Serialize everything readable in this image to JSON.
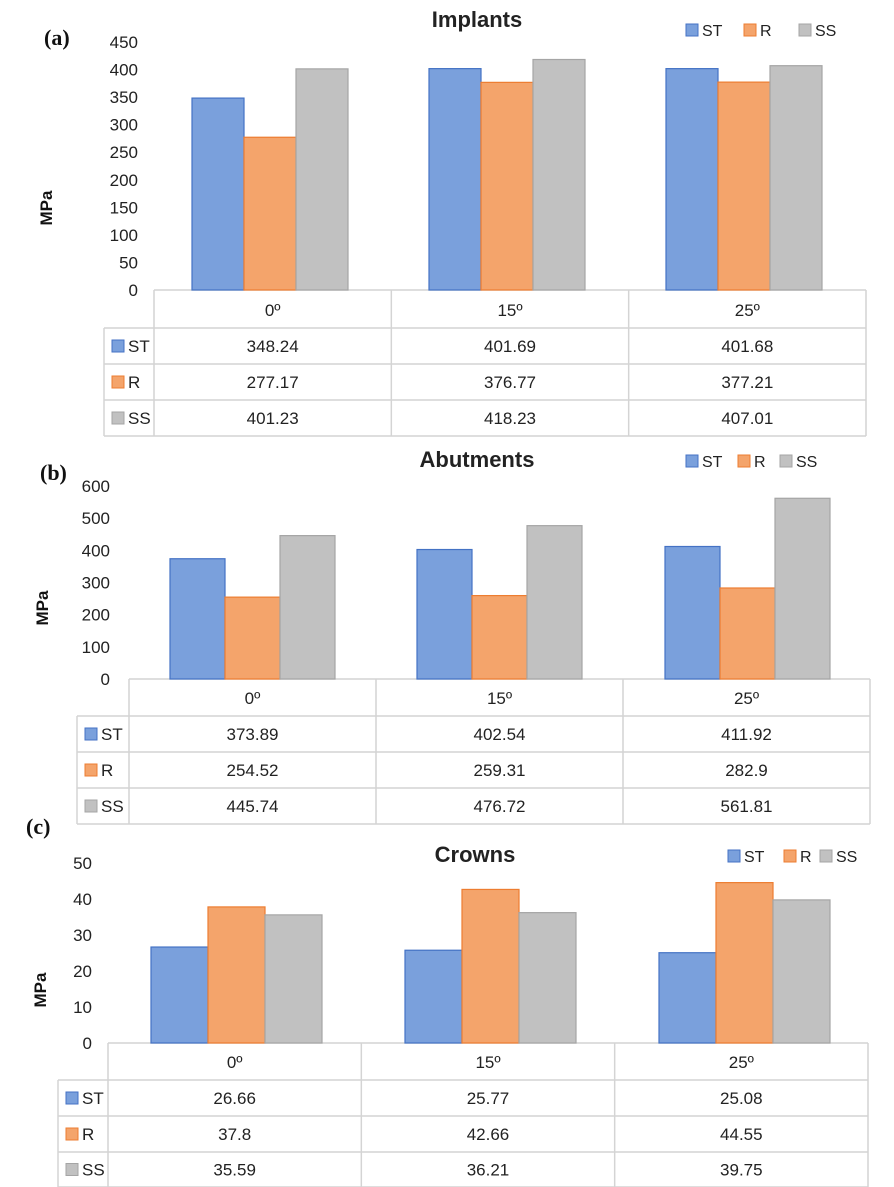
{
  "chart_data": [
    {
      "type": "bar",
      "panel_label": "(a)",
      "title": "Implants",
      "ylabel": "MPa",
      "ylim": [
        0,
        450
      ],
      "ytick_step": 50,
      "categories": [
        "0º",
        "15º",
        "25º"
      ],
      "series": [
        {
          "name": "ST",
          "color": "#7aa0dc",
          "values": [
            348.24,
            401.69,
            401.68
          ],
          "labels": [
            "348.24",
            "401.69",
            "401.68"
          ]
        },
        {
          "name": "R",
          "color": "#f4a46b",
          "values": [
            277.17,
            376.77,
            377.21
          ],
          "labels": [
            "277.17",
            "376.77",
            "377.21"
          ]
        },
        {
          "name": "SS",
          "color": "#c1c1c1",
          "values": [
            401.23,
            418.23,
            407.01
          ],
          "labels": [
            "401.23",
            "418.23",
            "407.01"
          ]
        }
      ],
      "legend": "top-right",
      "data_table": true
    },
    {
      "type": "bar",
      "panel_label": "(b)",
      "title": "Abutments",
      "ylabel": "MPa",
      "ylim": [
        0,
        600
      ],
      "ytick_step": 100,
      "categories": [
        "0º",
        "15º",
        "25º"
      ],
      "series": [
        {
          "name": "ST",
          "color": "#7aa0dc",
          "values": [
            373.89,
            402.54,
            411.92
          ],
          "labels": [
            "373.89",
            "402.54",
            "411.92"
          ]
        },
        {
          "name": "R",
          "color": "#f4a46b",
          "values": [
            254.52,
            259.31,
            282.9
          ],
          "labels": [
            "254.52",
            "259.31",
            "282.9"
          ]
        },
        {
          "name": "SS",
          "color": "#c1c1c1",
          "values": [
            445.74,
            476.72,
            561.81
          ],
          "labels": [
            "445.74",
            "476.72",
            "561.81"
          ]
        }
      ],
      "legend": "top-right",
      "data_table": true
    },
    {
      "type": "bar",
      "panel_label": "(c)",
      "title": "Crowns",
      "ylabel": "MPa",
      "ylim": [
        0,
        50
      ],
      "ytick_step": 10,
      "categories": [
        "0º",
        "15º",
        "25º"
      ],
      "series": [
        {
          "name": "ST",
          "color": "#7aa0dc",
          "values": [
            26.66,
            25.77,
            25.08
          ],
          "labels": [
            "26.66",
            "25.77",
            "25.08"
          ]
        },
        {
          "name": "R",
          "color": "#f4a46b",
          "values": [
            37.8,
            42.66,
            44.55
          ],
          "labels": [
            "37.8",
            "42.66",
            "44.55"
          ]
        },
        {
          "name": "SS",
          "color": "#c1c1c1",
          "values": [
            35.59,
            36.21,
            39.75
          ],
          "labels": [
            "35.59",
            "36.21",
            "39.75"
          ]
        }
      ],
      "legend": "top-right",
      "data_table": true
    }
  ]
}
